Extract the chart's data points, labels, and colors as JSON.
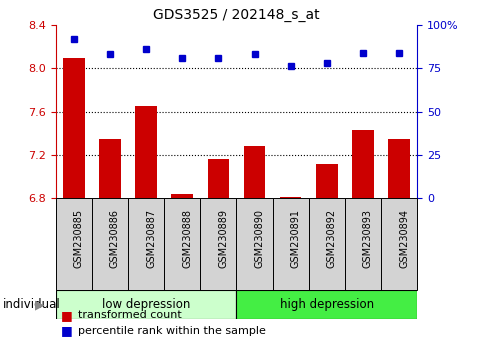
{
  "title": "GDS3525 / 202148_s_at",
  "samples": [
    "GSM230885",
    "GSM230886",
    "GSM230887",
    "GSM230888",
    "GSM230889",
    "GSM230890",
    "GSM230891",
    "GSM230892",
    "GSM230893",
    "GSM230894"
  ],
  "transformed_count": [
    8.09,
    7.35,
    7.65,
    6.84,
    7.16,
    7.28,
    6.81,
    7.12,
    7.43,
    7.35
  ],
  "percentile_rank": [
    92,
    83,
    86,
    81,
    81,
    83,
    76,
    78,
    84,
    84
  ],
  "bar_color": "#cc0000",
  "dot_color": "#0000cc",
  "ylim_left": [
    6.8,
    8.4
  ],
  "ylim_right": [
    0,
    100
  ],
  "yticks_left": [
    6.8,
    7.2,
    7.6,
    8.0,
    8.4
  ],
  "yticks_right": [
    0,
    25,
    50,
    75,
    100
  ],
  "ytick_labels_right": [
    "0",
    "25",
    "50",
    "75",
    "100%"
  ],
  "grid_lines": [
    7.2,
    7.6,
    8.0
  ],
  "groups": [
    {
      "label": "low depression",
      "start": 0,
      "end": 5,
      "color": "#ccffcc"
    },
    {
      "label": "high depression",
      "start": 5,
      "end": 10,
      "color": "#44ee44"
    }
  ],
  "legend_items": [
    {
      "label": "transformed count",
      "color": "#cc0000"
    },
    {
      "label": "percentile rank within the sample",
      "color": "#0000cc"
    }
  ],
  "individual_label": "individual",
  "background_color": "#ffffff",
  "tick_label_color_left": "#cc0000",
  "tick_label_color_right": "#0000cc",
  "sample_box_color": "#d3d3d3",
  "bar_bottom": 6.8,
  "n_samples": 10
}
